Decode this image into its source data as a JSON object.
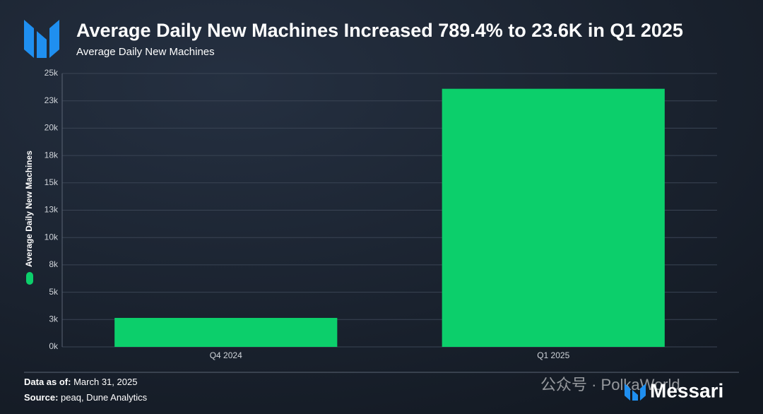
{
  "chart_data": {
    "type": "bar",
    "title": "Average Daily New Machines Increased 789.4% to 23.6K in Q1 2025",
    "subtitle": "Average Daily New Machines",
    "categories": [
      "Q4 2024",
      "Q1 2025"
    ],
    "series": [
      {
        "name": "Average Daily New Machines",
        "color": "#0ccf6b",
        "values": [
          2650,
          23600
        ]
      }
    ],
    "ylim": [
      0,
      25000
    ],
    "yticks": [
      {
        "value": 0,
        "label": "0k"
      },
      {
        "value": 2500,
        "label": "3k"
      },
      {
        "value": 5000,
        "label": "5k"
      },
      {
        "value": 7500,
        "label": "8k"
      },
      {
        "value": 10000,
        "label": "10k"
      },
      {
        "value": 12500,
        "label": "13k"
      },
      {
        "value": 15000,
        "label": "15k"
      },
      {
        "value": 17500,
        "label": "18k"
      },
      {
        "value": 20000,
        "label": "20k"
      },
      {
        "value": 22500,
        "label": "23k"
      },
      {
        "value": 25000,
        "label": "25k"
      }
    ],
    "grid": true
  },
  "footer": {
    "date_label": "Data as of:",
    "date": "March 31, 2025",
    "source_label": "Source:",
    "source": "peaq, Dune Analytics",
    "brand": "Messari",
    "watermark": "公众号 · PolkaWorld"
  }
}
